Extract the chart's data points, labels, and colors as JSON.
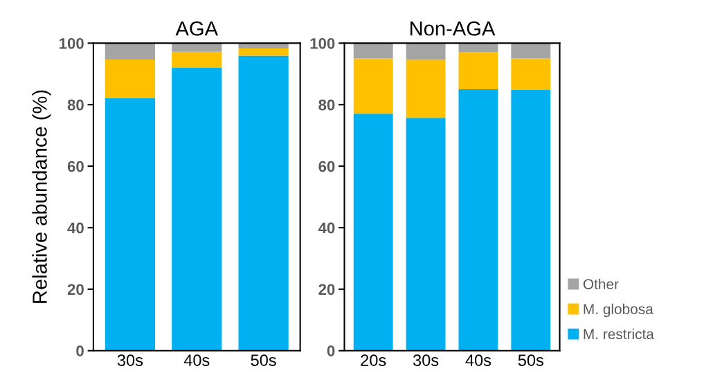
{
  "chart_data": [
    {
      "type": "bar",
      "title": "AGA",
      "ylabel": "Relative abundance (%)",
      "categories": [
        "30s",
        "40s",
        "50s"
      ],
      "stacked": true,
      "ylim": [
        0,
        100
      ],
      "yticks": [
        0,
        20,
        40,
        60,
        80,
        100
      ],
      "grid": false,
      "series": [
        {
          "color": "#00b0f0",
          "values": [
            82.2,
            92.0,
            95.9
          ]
        },
        {
          "color": "#ffc000",
          "values": [
            12.5,
            5.2,
            2.4
          ]
        },
        {
          "color": "#a5a5a5",
          "values": [
            5.3,
            2.8,
            1.7
          ]
        }
      ]
    },
    {
      "type": "bar",
      "title": "Non-AGA",
      "categories": [
        "20s",
        "30s",
        "40s",
        "50s"
      ],
      "stacked": true,
      "ylim": [
        0,
        100
      ],
      "yticks": [
        0,
        20,
        40,
        60,
        80,
        100
      ],
      "grid": false,
      "legend": "bottom right",
      "series": [
        {
          "name": "M. restricta",
          "color": "#00b0f0",
          "values": [
            77.1,
            75.7,
            85.0,
            84.8
          ]
        },
        {
          "name": "M. globosa",
          "color": "#ffc000",
          "values": [
            17.9,
            18.9,
            12.1,
            10.2
          ]
        },
        {
          "name": "Other",
          "color": "#a5a5a5",
          "values": [
            5.0,
            5.4,
            2.9,
            5.0
          ]
        }
      ]
    }
  ]
}
